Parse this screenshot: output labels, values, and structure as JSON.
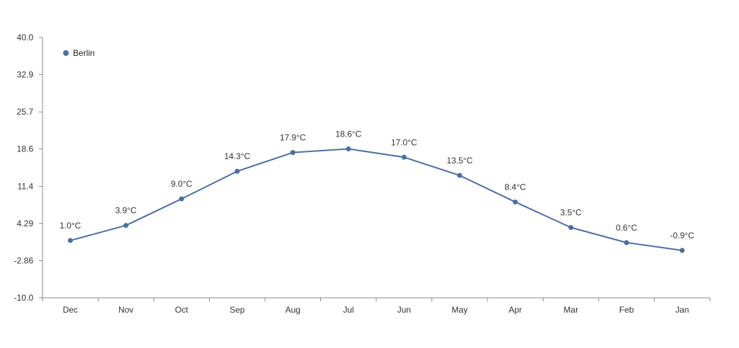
{
  "chart_data": {
    "type": "line",
    "title": "",
    "xlabel": "",
    "ylabel": "",
    "categories": [
      "Dec",
      "Nov",
      "Oct",
      "Sep",
      "Aug",
      "Jul",
      "Jun",
      "May",
      "Apr",
      "Mar",
      "Feb",
      "Jan"
    ],
    "series": [
      {
        "name": "Berlin",
        "color": "#4a6fa5",
        "values": [
          1.0,
          3.9,
          9.0,
          14.3,
          17.9,
          18.6,
          17.0,
          13.5,
          8.4,
          3.5,
          0.6,
          -0.9
        ],
        "labels": [
          "1.0°C",
          "3.9°C",
          "9.0°C",
          "14.3°C",
          "17.9°C",
          "18.6°C",
          "17.0°C",
          "13.5°C",
          "8.4°C",
          "3.5°C",
          "0.6°C",
          "-0.9°C"
        ]
      }
    ],
    "ylim": [
      -10.0,
      40.0
    ],
    "y_ticks": [
      40.0,
      32.9,
      25.7,
      18.6,
      11.4,
      4.29,
      -2.86,
      -10.0
    ],
    "y_tick_labels": [
      "40.0",
      "32.9",
      "25.7",
      "18.6",
      "11.4",
      "4.29",
      "-2.86",
      "-10.0"
    ],
    "grid": false,
    "legend": {
      "position": "top-left",
      "entries": [
        "Berlin"
      ]
    }
  }
}
